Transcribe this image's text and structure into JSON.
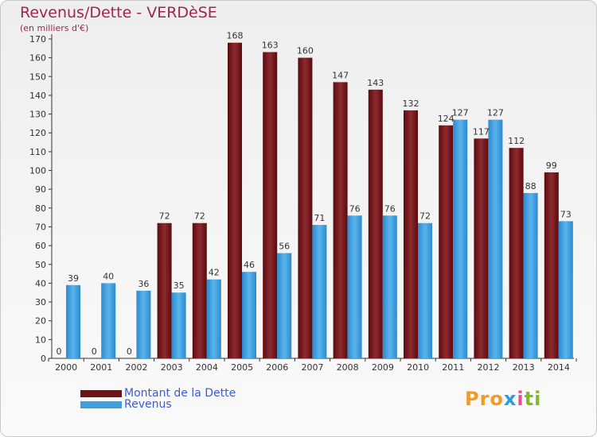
{
  "title": "Revenus/Dette - VERDèSE",
  "subtitle": "(en milliers d'€)",
  "logo": {
    "text": "Proxiti",
    "parts": [
      "Pro",
      "x",
      "i",
      "ti"
    ]
  },
  "colors": {
    "dette": "#7a1a1e",
    "revenus": "#3e9ee0",
    "title": "#a0264a",
    "legend_text": "#3b5bd0"
  },
  "chart_data": {
    "type": "bar",
    "title": "Revenus/Dette - VERDèSE",
    "ylabel": "(en milliers d'€)",
    "xlabel": "",
    "ylim": [
      0,
      170
    ],
    "ytick_step": 10,
    "grid": false,
    "legend_position": "bottom-left",
    "categories": [
      "2000",
      "2001",
      "2002",
      "2003",
      "2004",
      "2005",
      "2006",
      "2007",
      "2008",
      "2009",
      "2010",
      "2011",
      "2012",
      "2013",
      "2014"
    ],
    "series": [
      {
        "name": "Montant de la Dette",
        "values": [
          0,
          0,
          0,
          72,
          72,
          168,
          163,
          160,
          147,
          143,
          132,
          124,
          117,
          112,
          99
        ]
      },
      {
        "name": "Revenus",
        "values": [
          39,
          40,
          36,
          35,
          42,
          46,
          56,
          71,
          76,
          76,
          72,
          127,
          127,
          88,
          73
        ]
      }
    ]
  }
}
